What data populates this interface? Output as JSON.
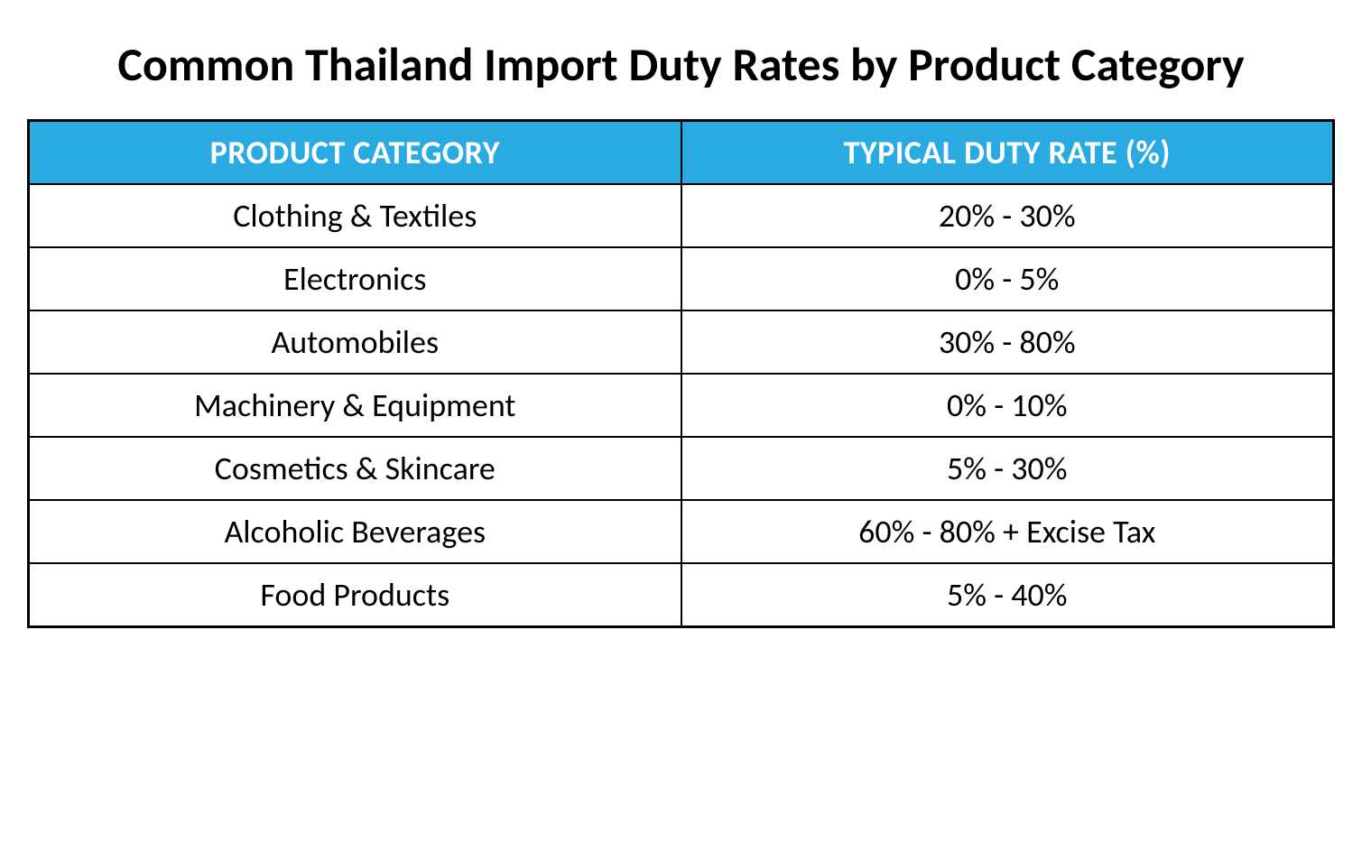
{
  "title": "Common Thailand Import Duty Rates by Product Category",
  "table": {
    "type": "table",
    "columns": [
      {
        "label": "PRODUCT CATEGORY",
        "width": "50%",
        "align": "center"
      },
      {
        "label": "TYPICAL DUTY RATE (%)",
        "width": "50%",
        "align": "center"
      }
    ],
    "rows": [
      {
        "category": "Clothing & Textiles",
        "rate": "20% - 30%"
      },
      {
        "category": "Electronics",
        "rate": "0% - 5%"
      },
      {
        "category": "Automobiles",
        "rate": "30% - 80%"
      },
      {
        "category": "Machinery & Equipment",
        "rate": "0% - 10%"
      },
      {
        "category": "Cosmetics & Skincare",
        "rate": "5% - 30%"
      },
      {
        "category": "Alcoholic Beverages",
        "rate": "60% - 80% + Excise Tax"
      },
      {
        "category": "Food Products",
        "rate": "5% - 40%"
      }
    ],
    "header_bg_color": "#29abe2",
    "header_text_color": "#ffffff",
    "border_color": "#000000",
    "cell_bg_color": "#ffffff",
    "cell_text_color": "#000000",
    "title_fontsize": 52,
    "header_fontsize": 36,
    "cell_fontsize": 36
  }
}
